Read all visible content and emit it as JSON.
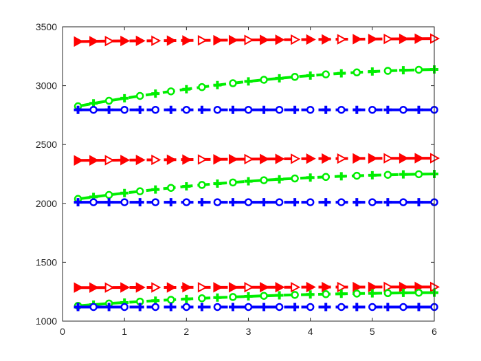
{
  "chart_data": {
    "type": "line",
    "title": "",
    "xlabel": "",
    "ylabel": "",
    "xlim": [
      0,
      6
    ],
    "ylim": [
      1000,
      3500
    ],
    "x_ticks": [
      0,
      1,
      2,
      3,
      4,
      5,
      6
    ],
    "x_tick_labels": [
      "0",
      "1",
      "2",
      "3",
      "4",
      "5",
      "6"
    ],
    "y_ticks": [
      1000,
      1500,
      2000,
      2500,
      3000,
      3500
    ],
    "y_tick_labels": [
      "1000",
      "1500",
      "2000",
      "2500",
      "3000",
      "3500"
    ],
    "grid": false,
    "legend": "none",
    "x": [
      0.25,
      0.5,
      0.75,
      1.0,
      1.25,
      1.5,
      1.75,
      2.0,
      2.25,
      2.5,
      2.75,
      3.0,
      3.25,
      3.5,
      3.75,
      4.0,
      4.25,
      4.5,
      4.75,
      5.0,
      5.25,
      5.5,
      5.75,
      6.0
    ],
    "series": [
      {
        "color": "#ff0000",
        "marker": "triangle-right",
        "values": [
          3375,
          3377,
          3379,
          3380,
          3381,
          3382,
          3383,
          3384,
          3385,
          3386,
          3387,
          3388,
          3389,
          3390,
          3391,
          3392,
          3393,
          3394,
          3395,
          3396,
          3397,
          3398,
          3399,
          3400
        ]
      },
      {
        "color": "#00ee00",
        "marker": "alternating-circle-plus",
        "values": [
          2825,
          2850,
          2872,
          2893,
          2913,
          2933,
          2952,
          2970,
          2988,
          3005,
          3021,
          3036,
          3050,
          3063,
          3075,
          3086,
          3096,
          3105,
          3113,
          3120,
          3126,
          3131,
          3135,
          3138
        ]
      },
      {
        "color": "#0000ff",
        "marker": "alternating-plus-circle",
        "values": [
          2795,
          2795,
          2795,
          2795,
          2795,
          2795,
          2795,
          2795,
          2795,
          2795,
          2795,
          2795,
          2795,
          2795,
          2795,
          2795,
          2795,
          2795,
          2795,
          2795,
          2795,
          2795,
          2795,
          2795
        ]
      },
      {
        "color": "#ff0000",
        "marker": "triangle-right",
        "values": [
          2365,
          2366,
          2367,
          2368,
          2369,
          2370,
          2371,
          2372,
          2373,
          2374,
          2375,
          2376,
          2377,
          2378,
          2379,
          2380,
          2381,
          2381,
          2382,
          2382,
          2383,
          2383,
          2384,
          2384
        ]
      },
      {
        "color": "#00ee00",
        "marker": "alternating-circle-plus",
        "values": [
          2038,
          2055,
          2072,
          2088,
          2103,
          2118,
          2132,
          2145,
          2157,
          2168,
          2178,
          2188,
          2197,
          2205,
          2212,
          2219,
          2225,
          2230,
          2235,
          2239,
          2243,
          2246,
          2248,
          2250
        ]
      },
      {
        "color": "#0000ff",
        "marker": "alternating-plus-circle",
        "values": [
          2010,
          2010,
          2010,
          2010,
          2010,
          2010,
          2010,
          2010,
          2010,
          2010,
          2010,
          2010,
          2010,
          2010,
          2010,
          2010,
          2010,
          2010,
          2010,
          2010,
          2010,
          2010,
          2010,
          2010
        ]
      },
      {
        "color": "#ff0000",
        "marker": "triangle-right",
        "values": [
          1285,
          1285,
          1285,
          1286,
          1286,
          1286,
          1286,
          1287,
          1287,
          1287,
          1287,
          1288,
          1288,
          1288,
          1288,
          1289,
          1289,
          1289,
          1289,
          1290,
          1290,
          1290,
          1290,
          1290
        ]
      },
      {
        "color": "#00ee00",
        "marker": "alternating-circle-plus",
        "values": [
          1130,
          1140,
          1150,
          1158,
          1166,
          1174,
          1181,
          1188,
          1194,
          1200,
          1205,
          1210,
          1215,
          1219,
          1223,
          1226,
          1229,
          1232,
          1234,
          1236,
          1238,
          1240,
          1241,
          1242
        ]
      },
      {
        "color": "#0000ff",
        "marker": "alternating-plus-circle",
        "values": [
          1120,
          1120,
          1120,
          1120,
          1120,
          1120,
          1120,
          1120,
          1120,
          1120,
          1120,
          1120,
          1120,
          1120,
          1120,
          1120,
          1120,
          1120,
          1120,
          1120,
          1120,
          1120,
          1120,
          1120
        ]
      }
    ]
  }
}
